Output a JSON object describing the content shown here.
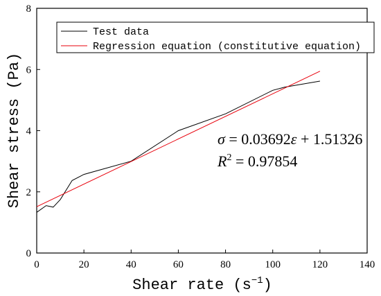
{
  "chart_data": {
    "type": "line",
    "xlabel": "Shear rate",
    "xlabel_unit": "s",
    "xlabel_unit_exp": "−1",
    "ylabel": "Shear stress (Pa)",
    "xlim": [
      0,
      140
    ],
    "ylim": [
      0,
      8
    ],
    "x_ticks": [
      0,
      20,
      40,
      60,
      80,
      100,
      120,
      140
    ],
    "y_ticks": [
      0,
      2,
      4,
      6,
      8
    ],
    "legend_position": "top-left",
    "series": [
      {
        "name": "Test data",
        "color": "#000000",
        "x": [
          0,
          4,
          7,
          10,
          15,
          20,
          40,
          60,
          80,
          100,
          105,
          120
        ],
        "y": [
          1.33,
          1.55,
          1.5,
          1.75,
          2.37,
          2.57,
          3.0,
          4.0,
          4.55,
          5.32,
          5.42,
          5.62
        ]
      },
      {
        "name": "Regression equation (constitutive equation)",
        "color": "#e8000b",
        "x": [
          0,
          120
        ],
        "y": [
          1.51326,
          5.94366
        ]
      }
    ],
    "annotations": {
      "equation_lhs": "σ",
      "equation_rest": " = 0.03692",
      "equation_var": "ε",
      "equation_tail": " + 1.51326",
      "r2_var": "R",
      "r2_exp": "2",
      "r2_rest": " = 0.97854"
    }
  }
}
